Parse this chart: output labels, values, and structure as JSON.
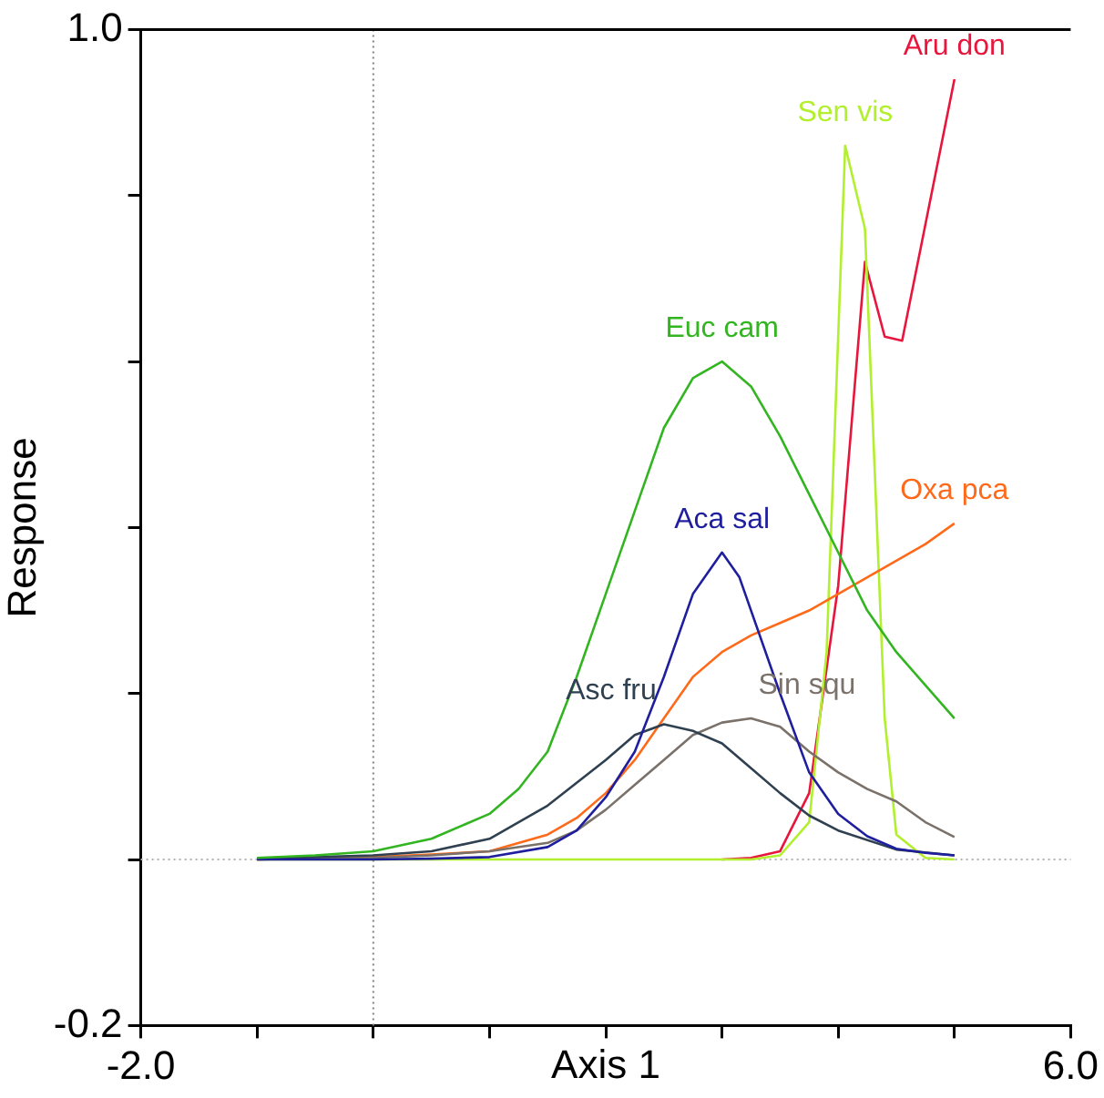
{
  "chart_data": {
    "type": "line",
    "xlabel": "Axis 1",
    "ylabel": "Response",
    "xlim": [
      -2,
      6
    ],
    "xticks": [
      {
        "value": -2,
        "label": "-2.0"
      },
      {
        "value": -1,
        "label": null
      },
      {
        "value": 0,
        "label": null
      },
      {
        "value": 1,
        "label": null
      },
      {
        "value": 2,
        "label": null
      },
      {
        "value": 3,
        "label": null
      },
      {
        "value": 4,
        "label": null
      },
      {
        "value": 5,
        "label": null
      },
      {
        "value": 6,
        "label": "6.0"
      }
    ],
    "ylim": [
      -0.2,
      1
    ],
    "yticks": [
      -0.2,
      {
        "value": 0,
        "label": null
      },
      {
        "value": 0.2,
        "label": null
      },
      {
        "value": 0.4,
        "label": null
      },
      {
        "value": 0.6,
        "label": null
      },
      {
        "value": 0.8,
        "label": null
      },
      {
        "value": 1,
        "label": "1.0"
      }
    ],
    "grid": false,
    "legend": false,
    "marker": "none",
    "line_style": "solid",
    "ref_lines": [
      {
        "axis": "x",
        "value": 0,
        "color": "#808080",
        "line_style": "dotted"
      },
      {
        "axis": "y",
        "value": 0,
        "color": "#b0b0b0",
        "line_style": "dotted"
      }
    ],
    "series": [
      {
        "name": "Euc cam",
        "color": "#33b522",
        "x": [
          -1,
          -0.5,
          0,
          0.5,
          1,
          1.25,
          1.5,
          1.75,
          2,
          2.25,
          2.5,
          2.75,
          3,
          3.25,
          3.5,
          3.75,
          4,
          4.25,
          4.5,
          4.75,
          5
        ],
        "values": [
          0.002,
          0.005,
          0.01,
          0.025,
          0.055,
          0.085,
          0.13,
          0.22,
          0.32,
          0.42,
          0.52,
          0.58,
          0.6,
          0.57,
          0.51,
          0.44,
          0.37,
          0.3,
          0.25,
          0.21,
          0.17
        ]
      },
      {
        "name": "Aca sal",
        "color": "#1f1f9e",
        "x": [
          -1,
          0,
          0.5,
          1,
          1.5,
          1.75,
          2,
          2.25,
          2.5,
          2.75,
          3,
          3.15,
          3.25,
          3.5,
          3.75,
          4,
          4.25,
          4.5,
          4.75,
          5
        ],
        "values": [
          0,
          0,
          0.001,
          0.003,
          0.015,
          0.035,
          0.075,
          0.13,
          0.22,
          0.32,
          0.37,
          0.34,
          0.3,
          0.2,
          0.105,
          0.055,
          0.028,
          0.013,
          0.008,
          0.005
        ]
      },
      {
        "name": "Asc fru",
        "color": "#2f4150",
        "x": [
          -1,
          0,
          0.5,
          1,
          1.5,
          2,
          2.25,
          2.5,
          2.75,
          3,
          3.25,
          3.5,
          3.75,
          4,
          4.5,
          5
        ],
        "values": [
          0.001,
          0.005,
          0.01,
          0.025,
          0.065,
          0.12,
          0.15,
          0.163,
          0.155,
          0.14,
          0.11,
          0.08,
          0.053,
          0.035,
          0.012,
          0.005
        ]
      },
      {
        "name": "Sin squ",
        "color": "#7a716a",
        "x": [
          -1,
          0,
          0.5,
          1,
          1.5,
          1.75,
          2,
          2.25,
          2.5,
          2.75,
          3,
          3.25,
          3.5,
          3.75,
          4,
          4.25,
          4.5,
          4.75,
          5
        ],
        "values": [
          0,
          0.002,
          0.005,
          0.01,
          0.02,
          0.035,
          0.06,
          0.09,
          0.12,
          0.15,
          0.165,
          0.17,
          0.16,
          0.13,
          0.105,
          0.085,
          0.07,
          0.045,
          0.027
        ]
      },
      {
        "name": "Oxa pca",
        "color": "#ff6a1a",
        "x": [
          -1,
          0,
          0.5,
          1,
          1.5,
          1.75,
          2,
          2.25,
          2.5,
          2.75,
          3,
          3.25,
          3.5,
          3.75,
          4,
          4.25,
          4.5,
          4.75,
          5
        ],
        "values": [
          0,
          0.003,
          0.006,
          0.01,
          0.03,
          0.05,
          0.08,
          0.12,
          0.17,
          0.22,
          0.25,
          0.27,
          0.285,
          0.3,
          0.32,
          0.34,
          0.36,
          0.38,
          0.405
        ]
      },
      {
        "name": "Sen vis",
        "color": "#b2ef2e",
        "x": [
          -1,
          0,
          1,
          2,
          3,
          3.25,
          3.5,
          3.75,
          3.9,
          4.06,
          4.23,
          4.4,
          4.5,
          4.75,
          5
        ],
        "values": [
          0,
          0,
          0,
          0,
          0,
          0,
          0.005,
          0.045,
          0.25,
          0.86,
          0.76,
          0.17,
          0.03,
          0.002,
          0
        ]
      },
      {
        "name": "Aru don",
        "color": "#e8163c",
        "x": [
          3,
          3.25,
          3.5,
          3.75,
          4,
          4.23,
          4.4,
          4.55,
          5
        ],
        "values": [
          0,
          0.002,
          0.01,
          0.08,
          0.33,
          0.72,
          0.63,
          0.625,
          0.94
        ]
      }
    ]
  }
}
